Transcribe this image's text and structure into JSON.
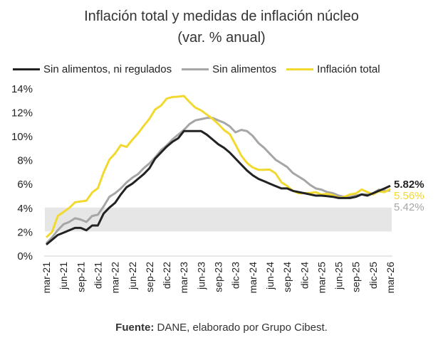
{
  "chart_data": {
    "type": "line",
    "title": "Inflación total y medidas de inflación núcleo",
    "subtitle": "(var. % anual)",
    "xlabel": "",
    "ylabel": "",
    "ylim": [
      0,
      14
    ],
    "yticks": [
      "0%",
      "2%",
      "4%",
      "6%",
      "8%",
      "10%",
      "12%",
      "14%"
    ],
    "grid": false,
    "legend_position": "top",
    "target_band": [
      2,
      4
    ],
    "band_color": "#e6e6e6",
    "xtick_labels": [
      "mar-21",
      "jun-21",
      "sep-21",
      "dic-21",
      "mar-22",
      "jun-22",
      "sep-22",
      "dic-22",
      "mar-23",
      "jun-23",
      "sep-23",
      "dic-23",
      "mar-24",
      "jun-24",
      "sep-24",
      "dic-24",
      "mar-25",
      "jun-25",
      "sep-25",
      "dic-25",
      "mar-26"
    ],
    "x_range": [
      "mar-21",
      "mar-26"
    ],
    "series": [
      {
        "name": "Sin alimentos, ni regulados",
        "color": "#222222",
        "end_label": "5.82%",
        "values": [
          0.9,
          1.3,
          1.7,
          1.9,
          2.1,
          2.3,
          2.3,
          2.1,
          2.5,
          2.5,
          3.5,
          4.0,
          4.4,
          5.1,
          5.7,
          6.0,
          6.4,
          6.8,
          7.3,
          8.1,
          8.6,
          9.1,
          9.5,
          9.8,
          10.4,
          10.4,
          10.4,
          10.4,
          10.1,
          9.7,
          9.3,
          9.0,
          8.6,
          8.1,
          7.6,
          7.1,
          6.7,
          6.4,
          6.2,
          6.0,
          5.8,
          5.6,
          5.6,
          5.4,
          5.3,
          5.2,
          5.1,
          5.0,
          5.0,
          4.95,
          4.9,
          4.8,
          4.8,
          4.8,
          4.9,
          5.1,
          5.0,
          5.2,
          5.4,
          5.6,
          5.82
        ]
      },
      {
        "name": "Sin alimentos",
        "color": "#a6a6a6",
        "end_label": "5.42%",
        "values": [
          1.0,
          1.5,
          2.1,
          2.6,
          2.8,
          3.1,
          3.0,
          2.8,
          3.3,
          3.4,
          4.1,
          4.9,
          5.2,
          5.6,
          6.1,
          6.5,
          6.8,
          7.3,
          7.7,
          8.2,
          8.8,
          9.2,
          9.7,
          10.1,
          10.5,
          11.0,
          11.3,
          11.4,
          11.5,
          11.5,
          11.3,
          11.1,
          10.8,
          10.3,
          10.5,
          10.4,
          10.0,
          9.4,
          9.0,
          8.5,
          8.0,
          7.7,
          7.4,
          6.9,
          6.6,
          6.3,
          5.9,
          5.6,
          5.5,
          5.3,
          5.2,
          5.0,
          4.9,
          4.9,
          5.0,
          5.1,
          5.1,
          5.2,
          5.5,
          5.4,
          5.42
        ]
      },
      {
        "name": "Inflación total",
        "color": "#f2d930",
        "end_label": "5.56%",
        "values": [
          1.51,
          1.95,
          3.3,
          3.63,
          3.97,
          4.44,
          4.51,
          4.58,
          5.26,
          5.62,
          6.94,
          8.01,
          8.53,
          9.23,
          9.07,
          9.67,
          10.21,
          10.84,
          11.44,
          12.22,
          12.53,
          13.12,
          13.25,
          13.28,
          13.34,
          12.82,
          12.36,
          12.13,
          11.78,
          11.43,
          10.99,
          10.48,
          10.15,
          9.28,
          8.35,
          7.74,
          7.36,
          7.16,
          7.16,
          7.18,
          6.86,
          6.12,
          5.81,
          5.41,
          5.2,
          5.2,
          5.22,
          5.28,
          5.09,
          5.16,
          5.05,
          4.82,
          4.9,
          5.1,
          5.18,
          5.51,
          5.3,
          5.1,
          5.35,
          5.29,
          5.56
        ]
      }
    ]
  },
  "source": {
    "label": "Fuente:",
    "text": " DANE, elaborado por Grupo Cibest."
  }
}
